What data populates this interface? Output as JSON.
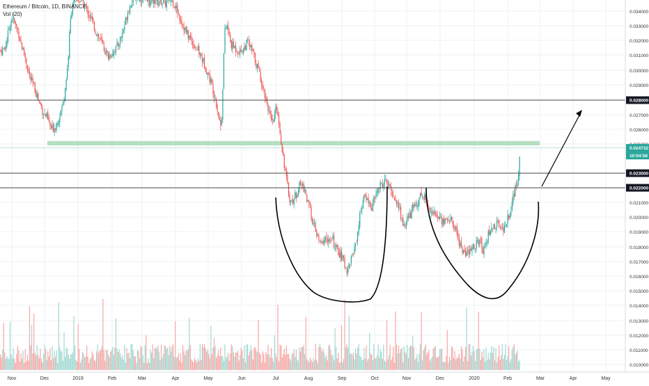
{
  "header": {
    "symbol": "Ethereum / Bitcoin, 1D, BINANCE",
    "vol_label": "Vol (20)"
  },
  "colors": {
    "up": "#26a69a",
    "down": "#ef5350",
    "vol_up": "#9fd8d2",
    "vol_down": "#f6a7a5",
    "zone": "#a8dab5",
    "grid": "#eef0f3",
    "line": "#444444",
    "drawing": "#000000"
  },
  "chart_data": {
    "type": "candlestick",
    "y_axis": {
      "min": 0.0095,
      "max": 0.035,
      "ticks": [
        "0.034000",
        "0.033000",
        "0.032000",
        "0.031000",
        "0.030000",
        "0.029000",
        "0.028000",
        "0.027000",
        "0.026000",
        "0.025000",
        "0.023000",
        "0.022000",
        "0.021000",
        "0.020000",
        "0.019000",
        "0.018000",
        "0.017000",
        "0.016000",
        "0.015000",
        "0.014000",
        "0.013000",
        "0.012000",
        "0.011000",
        "0.010000"
      ]
    },
    "x_axis": {
      "labels": [
        "Nov",
        "Dec",
        "2019",
        "Feb",
        "Mar",
        "Apr",
        "May",
        "Jun",
        "Jul",
        "Aug",
        "Sep",
        "Oct",
        "Nov",
        "Dec",
        "2020",
        "Feb",
        "Mar",
        "Apr",
        "May"
      ]
    },
    "price_tags": [
      {
        "text": "0.028000",
        "style": "dark"
      },
      {
        "text": "0.024732",
        "style": "green"
      },
      {
        "text": "10:54:58",
        "style": "green"
      },
      {
        "text": "0.023000",
        "style": "dark"
      },
      {
        "text": "0.022000",
        "style": "dark"
      }
    ],
    "horizontal_lines": [
      0.028,
      0.023,
      0.022
    ],
    "support_zone": {
      "from": 0.0249,
      "to": 0.0252
    },
    "last_price": 0.024732,
    "close_path": [
      [
        0,
        0.0313
      ],
      [
        6,
        0.0314
      ],
      [
        10,
        0.0322
      ],
      [
        14,
        0.0332
      ],
      [
        17,
        0.0335
      ],
      [
        21,
        0.0331
      ],
      [
        26,
        0.0325
      ],
      [
        30,
        0.0317
      ],
      [
        36,
        0.0308
      ],
      [
        42,
        0.0295
      ],
      [
        48,
        0.0289
      ],
      [
        55,
        0.028
      ],
      [
        61,
        0.0272
      ],
      [
        67,
        0.0268
      ],
      [
        73,
        0.026
      ],
      [
        79,
        0.0262
      ],
      [
        85,
        0.027
      ],
      [
        90,
        0.0278
      ],
      [
        94,
        0.0292
      ],
      [
        97,
        0.0305
      ],
      [
        100,
        0.033
      ],
      [
        103,
        0.0345
      ],
      [
        110,
        0.0348
      ],
      [
        118,
        0.0346
      ],
      [
        125,
        0.034
      ],
      [
        131,
        0.0334
      ],
      [
        137,
        0.0326
      ],
      [
        143,
        0.0321
      ],
      [
        149,
        0.0314
      ],
      [
        155,
        0.0309
      ],
      [
        161,
        0.0312
      ],
      [
        167,
        0.0315
      ],
      [
        173,
        0.0322
      ],
      [
        178,
        0.033
      ],
      [
        183,
        0.034
      ],
      [
        189,
        0.0347
      ],
      [
        195,
        0.035
      ],
      [
        201,
        0.0349
      ],
      [
        207,
        0.0348
      ],
      [
        213,
        0.0346
      ],
      [
        219,
        0.0348
      ],
      [
        225,
        0.0346
      ],
      [
        231,
        0.0347
      ],
      [
        237,
        0.0345
      ],
      [
        243,
        0.0348
      ],
      [
        249,
        0.0346
      ],
      [
        255,
        0.0339
      ],
      [
        261,
        0.0332
      ],
      [
        267,
        0.0325
      ],
      [
        273,
        0.0321
      ],
      [
        279,
        0.0316
      ],
      [
        285,
        0.0312
      ],
      [
        291,
        0.0306
      ],
      [
        297,
        0.0299
      ],
      [
        303,
        0.0291
      ],
      [
        309,
        0.0281
      ],
      [
        313,
        0.027
      ],
      [
        316,
        0.0262
      ],
      [
        318,
        0.027
      ],
      [
        320,
        0.03
      ],
      [
        322,
        0.0325
      ],
      [
        325,
        0.0331
      ],
      [
        331,
        0.0317
      ],
      [
        337,
        0.0315
      ],
      [
        343,
        0.0312
      ],
      [
        349,
        0.0314
      ],
      [
        355,
        0.0319
      ],
      [
        361,
        0.0313
      ],
      [
        367,
        0.0305
      ],
      [
        373,
        0.0296
      ],
      [
        379,
        0.0285
      ],
      [
        385,
        0.0274
      ],
      [
        390,
        0.0262
      ],
      [
        393,
        0.0268
      ],
      [
        397,
        0.0276
      ],
      [
        401,
        0.026
      ],
      [
        405,
        0.0245
      ],
      [
        409,
        0.0232
      ],
      [
        413,
        0.0218
      ],
      [
        417,
        0.021
      ],
      [
        421,
        0.0212
      ],
      [
        425,
        0.0216
      ],
      [
        429,
        0.0221
      ],
      [
        433,
        0.0222
      ],
      [
        437,
        0.0219
      ],
      [
        441,
        0.021
      ],
      [
        445,
        0.0204
      ],
      [
        449,
        0.0196
      ],
      [
        453,
        0.019
      ],
      [
        457,
        0.0184
      ],
      [
        461,
        0.0181
      ],
      [
        465,
        0.0185
      ],
      [
        469,
        0.0186
      ],
      [
        473,
        0.0182
      ],
      [
        477,
        0.0185
      ],
      [
        481,
        0.0179
      ],
      [
        485,
        0.0177
      ],
      [
        489,
        0.0174
      ],
      [
        493,
        0.017
      ],
      [
        497,
        0.0164
      ],
      [
        501,
        0.0168
      ],
      [
        505,
        0.0174
      ],
      [
        509,
        0.018
      ],
      [
        513,
        0.0189
      ],
      [
        517,
        0.0204
      ],
      [
        521,
        0.0212
      ],
      [
        525,
        0.0214
      ],
      [
        529,
        0.021
      ],
      [
        533,
        0.0206
      ],
      [
        537,
        0.0212
      ],
      [
        541,
        0.0218
      ],
      [
        545,
        0.0221
      ],
      [
        549,
        0.0223
      ],
      [
        553,
        0.0225
      ],
      [
        557,
        0.0221
      ],
      [
        561,
        0.0218
      ],
      [
        565,
        0.0214
      ],
      [
        569,
        0.021
      ],
      [
        573,
        0.0206
      ],
      [
        577,
        0.0196
      ],
      [
        581,
        0.0194
      ],
      [
        585,
        0.0199
      ],
      [
        589,
        0.0202
      ],
      [
        593,
        0.0207
      ],
      [
        597,
        0.0208
      ],
      [
        601,
        0.0213
      ],
      [
        605,
        0.0216
      ],
      [
        609,
        0.0214
      ],
      [
        613,
        0.0208
      ],
      [
        617,
        0.0206
      ],
      [
        621,
        0.0203
      ],
      [
        625,
        0.0201
      ],
      [
        629,
        0.02
      ],
      [
        633,
        0.0198
      ],
      [
        637,
        0.0197
      ],
      [
        641,
        0.0198
      ],
      [
        645,
        0.0199
      ],
      [
        649,
        0.0195
      ],
      [
        653,
        0.0193
      ],
      [
        657,
        0.0186
      ],
      [
        661,
        0.0181
      ],
      [
        665,
        0.0176
      ],
      [
        669,
        0.0175
      ],
      [
        673,
        0.0176
      ],
      [
        677,
        0.0178
      ],
      [
        681,
        0.0181
      ],
      [
        685,
        0.0183
      ],
      [
        689,
        0.0183
      ],
      [
        693,
        0.0178
      ],
      [
        697,
        0.0184
      ],
      [
        701,
        0.0188
      ],
      [
        705,
        0.0192
      ],
      [
        709,
        0.0194
      ],
      [
        713,
        0.0195
      ],
      [
        717,
        0.0196
      ],
      [
        721,
        0.0191
      ],
      [
        725,
        0.0194
      ],
      [
        729,
        0.02
      ],
      [
        733,
        0.0206
      ],
      [
        737,
        0.0215
      ],
      [
        741,
        0.0221
      ],
      [
        744,
        0.023
      ],
      [
        746,
        0.0247
      ]
    ]
  },
  "drawings": {
    "arrow": "up-right arrow",
    "arcs": 2
  }
}
